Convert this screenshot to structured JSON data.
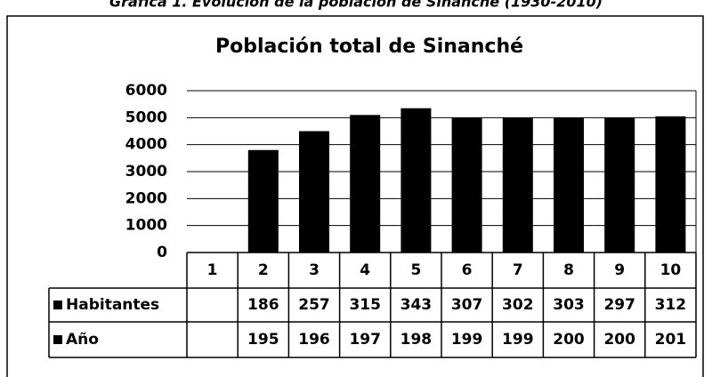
{
  "caption": "Gráfica 1. Evolución de la población de Sinanché (1930-2010)",
  "chart_data": {
    "type": "bar",
    "title": "Población total de Sinanché",
    "categories": [
      "1",
      "2",
      "3",
      "4",
      "5",
      "6",
      "7",
      "8",
      "9",
      "10"
    ],
    "series": [
      {
        "name": "Habitantes",
        "color": "#000000",
        "values": [
          null,
          3800,
          4500,
          5100,
          5350,
          5000,
          5000,
          5000,
          5000,
          5050
        ],
        "cells": [
          null,
          "186",
          "257",
          "315",
          "343",
          "307",
          "302",
          "303",
          "297",
          "312"
        ]
      }
    ],
    "table_rows": [
      {
        "name": "Año",
        "cells": [
          null,
          "195",
          "196",
          "197",
          "198",
          "199",
          "199",
          "200",
          "200",
          "201"
        ]
      }
    ],
    "ylim": [
      0,
      6000
    ],
    "yticks": [
      0,
      1000,
      2000,
      3000,
      4000,
      5000,
      6000
    ],
    "grid": true
  }
}
